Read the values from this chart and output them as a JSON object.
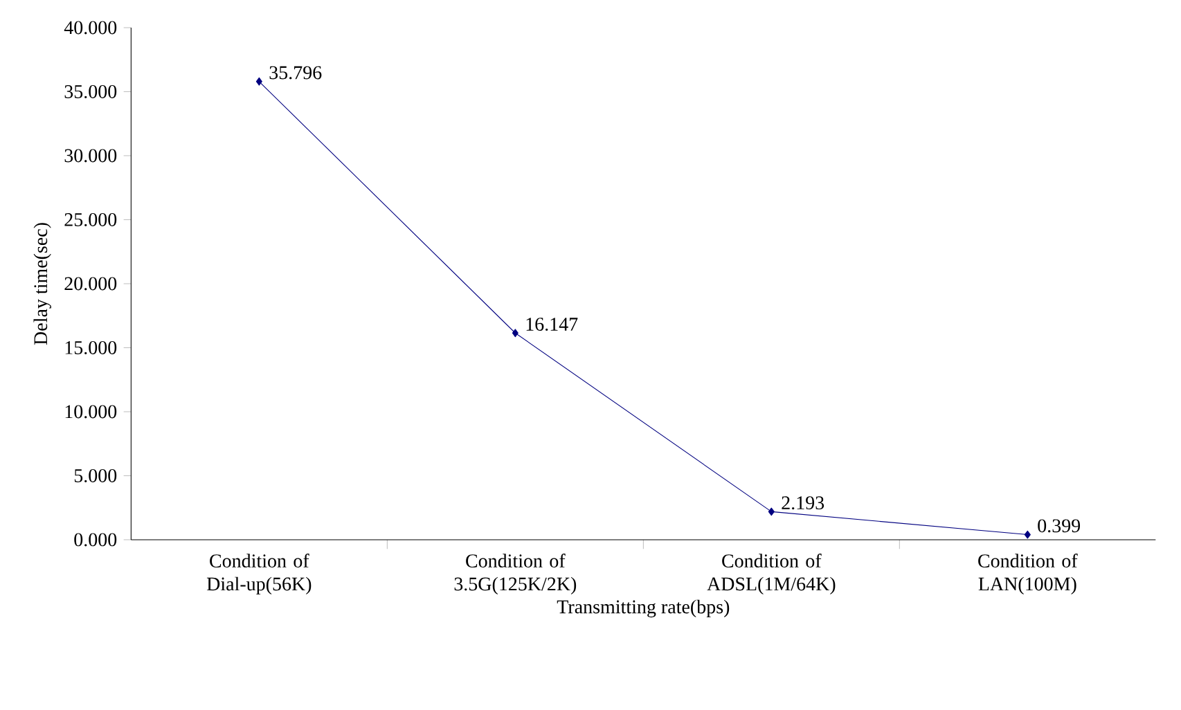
{
  "chart_data": {
    "type": "line",
    "xlabel": "Transmitting rate(bps)",
    "ylabel": "Delay time(sec)",
    "categories": [
      "Condition of Dial-up(56K)",
      "Condition of 3.5G(125K/2K)",
      "Condition of ADSL(1M/64K)",
      "Condition of LAN(100M)"
    ],
    "series": [
      {
        "color": "#000080",
        "values": [
          35.796,
          16.147,
          2.193,
          0.399
        ]
      }
    ],
    "ylim": [
      0,
      40
    ],
    "yticks": [
      {
        "value": 0,
        "label": "0.000"
      },
      {
        "value": 5,
        "label": "5.000"
      },
      {
        "value": 10,
        "label": "10.000"
      },
      {
        "value": 15,
        "label": "15.000"
      },
      {
        "value": 20,
        "label": "20.000"
      },
      {
        "value": 25,
        "label": "25.000"
      },
      {
        "value": 30,
        "label": "30.000"
      },
      {
        "value": 35,
        "label": "35.000"
      },
      {
        "value": 40,
        "label": "40.000"
      }
    ],
    "marker": "diamond",
    "line_style": "solid",
    "data_labels": true,
    "grid": false
  }
}
